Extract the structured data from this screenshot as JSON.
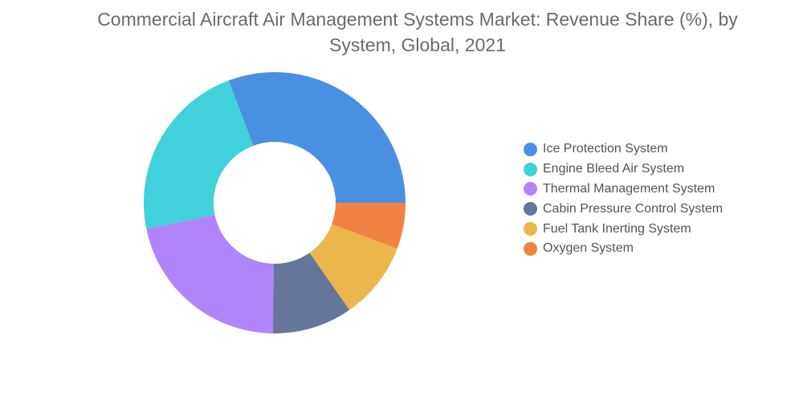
{
  "chart_data": {
    "type": "pie",
    "title": "Commercial Aircraft Air Management Systems Market: Revenue Share (%), by\nSystem, Global, 2021",
    "donut": true,
    "legend_position": "right",
    "series": [
      {
        "name": "Ice Protection System",
        "value": 30.7,
        "color": "#4a90e2"
      },
      {
        "name": "Engine Bleed Air System",
        "value": 22.5,
        "color": "#40d1da"
      },
      {
        "name": "Thermal Management System",
        "value": 21.6,
        "color": "#b084fb"
      },
      {
        "name": "Cabin Pressure Control System",
        "value": 9.9,
        "color": "#65769a"
      },
      {
        "name": "Fuel Tank Inerting System",
        "value": 9.6,
        "color": "#ecb64c"
      },
      {
        "name": "Oxygen System",
        "value": 5.7,
        "color": "#f28243"
      }
    ]
  }
}
